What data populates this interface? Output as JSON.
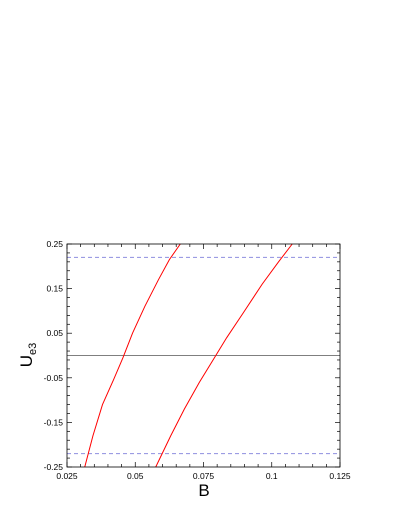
{
  "chart_data": {
    "type": "line",
    "xlabel": "B",
    "ylabel_main": "U",
    "ylabel_sub": "e3",
    "xlim": [
      0.025,
      0.125
    ],
    "ylim": [
      -0.25,
      0.25
    ],
    "x_ticks": [
      0.025,
      0.05,
      0.075,
      0.1,
      0.125
    ],
    "x_tick_labels": [
      "0.025",
      "0.05",
      "0.075",
      "0.1",
      "0.125"
    ],
    "y_ticks": [
      0.25,
      0.15,
      0.05,
      -0.05,
      -0.15,
      -0.25
    ],
    "y_tick_labels": [
      "0.25",
      "0.15",
      "0.05",
      "-0.05",
      "-0.15",
      "-0.25"
    ],
    "grid": false,
    "colors": {
      "curve": "#ff0000",
      "zero_line": "#7f7f7f",
      "bound": "#8f8fdf",
      "frame": "#000000"
    },
    "series": [
      {
        "x": [
          0.0315,
          0.0345,
          0.038,
          0.042,
          0.0455,
          0.049,
          0.0535,
          0.0585,
          0.0625,
          0.0665
        ],
        "y": [
          -0.25,
          -0.18,
          -0.11,
          -0.055,
          -0.005,
          0.05,
          0.11,
          0.17,
          0.215,
          0.25
        ]
      },
      {
        "x": [
          0.0575,
          0.063,
          0.068,
          0.0735,
          0.0785,
          0.0835,
          0.0895,
          0.0965,
          0.1025,
          0.1075
        ],
        "y": [
          -0.25,
          -0.18,
          -0.12,
          -0.06,
          -0.01,
          0.04,
          0.095,
          0.16,
          0.21,
          0.25
        ]
      }
    ],
    "reference_lines": [
      {
        "y": 0,
        "style": "solid"
      },
      {
        "y": 0.22,
        "style": "dashed"
      },
      {
        "y": -0.22,
        "style": "dashed"
      }
    ]
  }
}
